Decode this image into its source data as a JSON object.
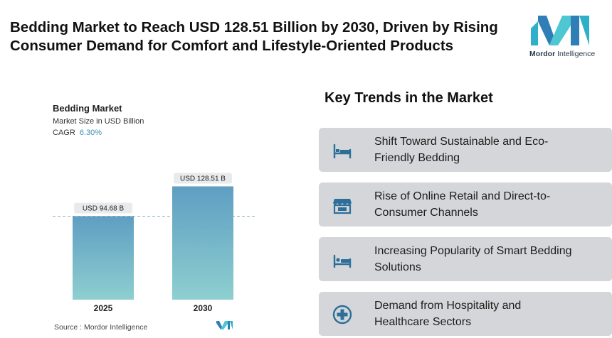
{
  "headline": {
    "line1": "Bedding Market to Reach USD 128.51 Billion by 2030, Driven by Rising",
    "line2": "Consumer Demand for Comfort and Lifestyle-Oriented Products"
  },
  "logo": {
    "brand_bold": "Mordor",
    "brand_rest": " Intelligence"
  },
  "chart_data": {
    "type": "bar",
    "title": "Bedding Market",
    "subtitle": "Market Size in USD Billion",
    "cagr_label": "CAGR",
    "cagr_value": "6.30%",
    "categories": [
      "2025",
      "2030"
    ],
    "values": [
      94.68,
      128.51
    ],
    "data_labels": [
      "USD 94.68 B",
      "USD 128.51 B"
    ],
    "ylim": [
      0,
      145
    ],
    "reference_line": 94.68,
    "colors": {
      "top": "#5f9ec2",
      "bottom": "#8ecfd0"
    }
  },
  "source": "Source :  Mordor Intelligence",
  "trends": {
    "title": "Key Trends in the Market",
    "items": [
      {
        "line1": "Shift Toward Sustainable and Eco-",
        "line2": "Friendly Bedding",
        "icon": "bed-icon"
      },
      {
        "line1": "Rise of Online Retail and Direct-to-",
        "line2": "Consumer Channels",
        "icon": "storefront-icon"
      },
      {
        "line1": "Increasing Popularity of Smart Bedding",
        "line2": "Solutions",
        "icon": "smart-bed-icon"
      },
      {
        "line1": "Demand from Hospitality and",
        "line2": "Healthcare Sectors",
        "icon": "medical-cross-icon"
      }
    ]
  }
}
